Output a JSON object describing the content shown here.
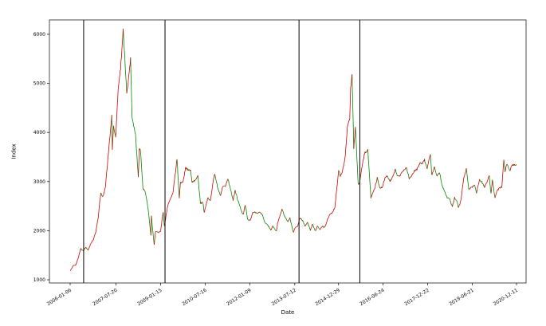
{
  "figure": {
    "background": "#ffffff"
  },
  "chart_data": {
    "type": "line",
    "title": "",
    "xlabel": "Date",
    "ylabel": "Index",
    "x_tick_labels": [
      "2006-01-06",
      "2007-07-20",
      "2009-01-15",
      "2010-07-16",
      "2012-01-09",
      "2013-07-12",
      "2014-12-29",
      "2016-06-24",
      "2017-12-22",
      "2019-06-21",
      "2020-12-11"
    ],
    "y_ticks": [
      1000,
      2000,
      3000,
      4000,
      5000,
      6000
    ],
    "ylim": [
      950,
      6290
    ],
    "grid": false,
    "legend": "none",
    "colors": {
      "up": "#d40000",
      "down": "#008a00",
      "axis": "#000000"
    },
    "event_lines": {
      "color": "#000000",
      "width": 1,
      "dates": [
        "2006-06-20",
        "2009-03-10",
        "2013-09-02",
        "2015-09-15"
      ]
    },
    "series": [
      {
        "name": "index",
        "points": [
          [
            "2006-01-06",
            1180
          ],
          [
            "2006-02-15",
            1285
          ],
          [
            "2006-03-15",
            1300
          ],
          [
            "2006-04-14",
            1440
          ],
          [
            "2006-05-15",
            1640
          ],
          [
            "2006-06-15",
            1590
          ],
          [
            "2006-07-14",
            1665
          ],
          [
            "2006-08-15",
            1600
          ],
          [
            "2006-09-15",
            1740
          ],
          [
            "2006-10-16",
            1820
          ],
          [
            "2006-11-15",
            1970
          ],
          [
            "2006-12-15",
            2270
          ],
          [
            "2007-01-15",
            2780
          ],
          [
            "2007-02-06",
            2680
          ],
          [
            "2007-02-27",
            2772
          ],
          [
            "2007-03-15",
            2930
          ],
          [
            "2007-04-16",
            3530
          ],
          [
            "2007-05-15",
            4050
          ],
          [
            "2007-05-29",
            4335
          ],
          [
            "2007-06-05",
            3670
          ],
          [
            "2007-06-20",
            4130
          ],
          [
            "2007-07-16",
            3900
          ],
          [
            "2007-08-15",
            4870
          ],
          [
            "2007-09-14",
            5310
          ],
          [
            "2007-10-16",
            6092
          ],
          [
            "2007-11-28",
            4803
          ],
          [
            "2007-12-14",
            5000
          ],
          [
            "2008-01-14",
            5497
          ],
          [
            "2008-02-01",
            4320
          ],
          [
            "2008-03-14",
            3962
          ],
          [
            "2008-04-18",
            3094
          ],
          [
            "2008-04-30",
            3693
          ],
          [
            "2008-05-15",
            3624
          ],
          [
            "2008-06-13",
            2868
          ],
          [
            "2008-07-15",
            2778
          ],
          [
            "2008-08-15",
            2450
          ],
          [
            "2008-09-18",
            1896
          ],
          [
            "2008-09-25",
            2297
          ],
          [
            "2008-10-28",
            1706
          ],
          [
            "2008-11-14",
            1986
          ],
          [
            "2008-12-15",
            1964
          ],
          [
            "2009-01-15",
            1990
          ],
          [
            "2009-02-16",
            2390
          ],
          [
            "2009-03-02",
            2093
          ],
          [
            "2009-04-15",
            2534
          ],
          [
            "2009-05-15",
            2645
          ],
          [
            "2009-06-15",
            2769
          ],
          [
            "2009-07-15",
            3188
          ],
          [
            "2009-08-04",
            3471
          ],
          [
            "2009-08-31",
            2668
          ],
          [
            "2009-09-15",
            2986
          ],
          [
            "2009-10-15",
            2979
          ],
          [
            "2009-11-16",
            3275
          ],
          [
            "2009-12-15",
            3247
          ],
          [
            "2010-01-15",
            3224
          ],
          [
            "2010-02-03",
            2995
          ],
          [
            "2010-03-15",
            3020
          ],
          [
            "2010-04-15",
            3130
          ],
          [
            "2010-05-17",
            2560
          ],
          [
            "2010-06-15",
            2570
          ],
          [
            "2010-07-02",
            2383
          ],
          [
            "2010-08-16",
            2666
          ],
          [
            "2010-09-15",
            2602
          ],
          [
            "2010-10-15",
            2971
          ],
          [
            "2010-11-08",
            3159
          ],
          [
            "2010-12-15",
            2860
          ],
          [
            "2011-01-17",
            2706
          ],
          [
            "2011-02-15",
            2900
          ],
          [
            "2011-03-15",
            2896
          ],
          [
            "2011-04-18",
            3057
          ],
          [
            "2011-05-16",
            2872
          ],
          [
            "2011-06-20",
            2621
          ],
          [
            "2011-07-15",
            2820
          ],
          [
            "2011-08-15",
            2626
          ],
          [
            "2011-09-15",
            2479
          ],
          [
            "2011-10-21",
            2317
          ],
          [
            "2011-11-15",
            2530
          ],
          [
            "2011-12-15",
            2229
          ],
          [
            "2012-01-16",
            2206
          ],
          [
            "2012-02-15",
            2366
          ],
          [
            "2012-03-15",
            2374
          ],
          [
            "2012-04-16",
            2357
          ],
          [
            "2012-05-15",
            2375
          ],
          [
            "2012-06-15",
            2307
          ],
          [
            "2012-07-16",
            2147
          ],
          [
            "2012-08-15",
            2119
          ],
          [
            "2012-09-26",
            2004
          ],
          [
            "2012-10-15",
            2098
          ],
          [
            "2012-11-30",
            1980
          ],
          [
            "2012-12-14",
            2150
          ],
          [
            "2013-01-15",
            2326
          ],
          [
            "2013-02-06",
            2434
          ],
          [
            "2013-03-15",
            2279
          ],
          [
            "2013-04-15",
            2182
          ],
          [
            "2013-05-15",
            2251
          ],
          [
            "2013-06-25",
            1959
          ],
          [
            "2013-07-15",
            2059
          ],
          [
            "2013-08-15",
            2081
          ],
          [
            "2013-09-12",
            2256
          ],
          [
            "2013-10-15",
            2210
          ],
          [
            "2013-11-14",
            2100
          ],
          [
            "2013-12-16",
            2161
          ],
          [
            "2014-01-20",
            2009
          ],
          [
            "2014-02-14",
            2135
          ],
          [
            "2014-03-20",
            1994
          ],
          [
            "2014-04-15",
            2102
          ],
          [
            "2014-05-15",
            2025
          ],
          [
            "2014-06-16",
            2086
          ],
          [
            "2014-07-15",
            2070
          ],
          [
            "2014-08-15",
            2227
          ],
          [
            "2014-09-15",
            2340
          ],
          [
            "2014-10-15",
            2366
          ],
          [
            "2014-11-14",
            2479
          ],
          [
            "2014-12-08",
            2860
          ],
          [
            "2014-12-31",
            3235
          ],
          [
            "2015-01-19",
            3116
          ],
          [
            "2015-02-13",
            3204
          ],
          [
            "2015-03-16",
            3449
          ],
          [
            "2015-04-15",
            4084
          ],
          [
            "2015-05-15",
            4308
          ],
          [
            "2015-05-26",
            4910
          ],
          [
            "2015-06-12",
            5166
          ],
          [
            "2015-07-03",
            3687
          ],
          [
            "2015-07-23",
            4124
          ],
          [
            "2015-08-26",
            2927
          ],
          [
            "2015-09-15",
            3005
          ],
          [
            "2015-10-15",
            3338
          ],
          [
            "2015-11-13",
            3581
          ],
          [
            "2015-12-22",
            3651
          ],
          [
            "2016-01-28",
            2656
          ],
          [
            "2016-02-15",
            2746
          ],
          [
            "2016-03-15",
            2864
          ],
          [
            "2016-04-15",
            3078
          ],
          [
            "2016-05-16",
            2851
          ],
          [
            "2016-06-15",
            2887
          ],
          [
            "2016-07-15",
            3054
          ],
          [
            "2016-08-15",
            3126
          ],
          [
            "2016-09-14",
            3003
          ],
          [
            "2016-10-14",
            3063
          ],
          [
            "2016-11-22",
            3248
          ],
          [
            "2016-12-15",
            3118
          ],
          [
            "2017-01-16",
            3108
          ],
          [
            "2017-02-15",
            3213
          ],
          [
            "2017-03-15",
            3242
          ],
          [
            "2017-04-07",
            3286
          ],
          [
            "2017-05-11",
            3062
          ],
          [
            "2017-06-15",
            3132
          ],
          [
            "2017-07-14",
            3222
          ],
          [
            "2017-08-15",
            3252
          ],
          [
            "2017-09-14",
            3371
          ],
          [
            "2017-10-16",
            3378
          ],
          [
            "2017-11-13",
            3447
          ],
          [
            "2017-12-15",
            3267
          ],
          [
            "2018-01-24",
            3559
          ],
          [
            "2018-02-09",
            3130
          ],
          [
            "2018-03-15",
            3291
          ],
          [
            "2018-04-16",
            3111
          ],
          [
            "2018-05-15",
            3192
          ],
          [
            "2018-06-19",
            2908
          ],
          [
            "2018-07-16",
            2814
          ],
          [
            "2018-08-17",
            2669
          ],
          [
            "2018-09-17",
            2652
          ],
          [
            "2018-10-18",
            2486
          ],
          [
            "2018-11-15",
            2669
          ],
          [
            "2018-12-14",
            2594
          ],
          [
            "2019-01-03",
            2464
          ],
          [
            "2019-02-01",
            2618
          ],
          [
            "2019-03-05",
            3054
          ],
          [
            "2019-04-08",
            3245
          ],
          [
            "2019-05-09",
            2851
          ],
          [
            "2019-06-14",
            2882
          ],
          [
            "2019-07-15",
            2942
          ],
          [
            "2019-08-09",
            2775
          ],
          [
            "2019-09-16",
            3031
          ],
          [
            "2019-10-15",
            2991
          ],
          [
            "2019-11-15",
            2891
          ],
          [
            "2019-12-16",
            2984
          ],
          [
            "2020-01-13",
            3115
          ],
          [
            "2020-02-03",
            2747
          ],
          [
            "2020-02-21",
            3040
          ],
          [
            "2020-03-23",
            2660
          ],
          [
            "2020-04-15",
            2811
          ],
          [
            "2020-05-15",
            2868
          ],
          [
            "2020-06-15",
            2890
          ],
          [
            "2020-07-09",
            3450
          ],
          [
            "2020-07-24",
            3196
          ],
          [
            "2020-08-14",
            3360
          ],
          [
            "2020-09-25",
            3219
          ],
          [
            "2020-10-15",
            3340
          ],
          [
            "2020-11-16",
            3347
          ],
          [
            "2020-12-11",
            3347
          ]
        ]
      }
    ]
  }
}
